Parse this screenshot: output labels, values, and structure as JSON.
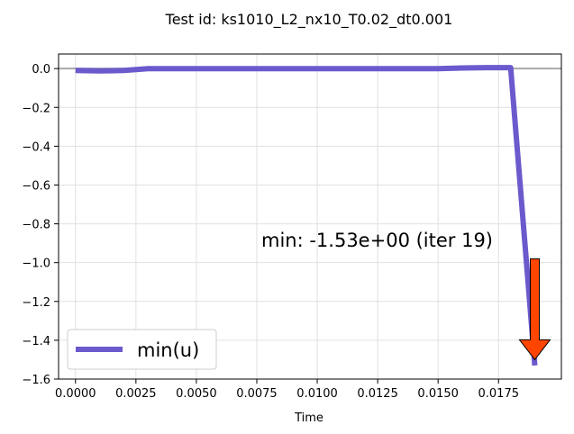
{
  "chart_data": {
    "type": "line",
    "title": "Test id:  ks1010_L2_nx10_T0.02_dt0.001",
    "xlabel": "Time",
    "ylabel": "",
    "xlim": [
      -0.0007,
      0.0201
    ],
    "ylim": [
      -1.6,
      0.075
    ],
    "xticks": [
      0.0,
      0.0025,
      0.005,
      0.0075,
      0.01,
      0.0125,
      0.015,
      0.0175
    ],
    "xtick_labels": [
      "0.0000",
      "0.0025",
      "0.0050",
      "0.0075",
      "0.0100",
      "0.0125",
      "0.0150",
      "0.0175"
    ],
    "yticks": [
      0.0,
      -0.2,
      -0.4,
      -0.6,
      -0.8,
      -1.0,
      -1.2,
      -1.4,
      -1.6
    ],
    "ytick_labels": [
      "0.0",
      "−0.2",
      "−0.4",
      "−0.6",
      "−0.8",
      "−1.0",
      "−1.2",
      "−1.4",
      "−1.6"
    ],
    "grid": true,
    "reference_line_y": 0.0,
    "series": [
      {
        "name": "min(u)",
        "color": "#6a5acd",
        "x": [
          0.0,
          0.001,
          0.002,
          0.003,
          0.004,
          0.005,
          0.006,
          0.007,
          0.008,
          0.009,
          0.01,
          0.011,
          0.012,
          0.013,
          0.014,
          0.015,
          0.016,
          0.017,
          0.018,
          0.019
        ],
        "y": [
          -0.01,
          -0.012,
          -0.01,
          0.0,
          0.0,
          0.0,
          0.0,
          0.0,
          0.0,
          0.0,
          0.0,
          0.0,
          0.0,
          0.0,
          0.0,
          0.0,
          0.003,
          0.005,
          0.005,
          -1.53
        ]
      }
    ],
    "annotation": {
      "text": "min: -1.53e+00 (iter 19)",
      "arrow_color": "#ff4500",
      "arrow_from": [
        0.019,
        -0.98
      ],
      "arrow_to": [
        0.019,
        -1.5
      ]
    },
    "legend": {
      "position": "lower-left",
      "entries": [
        "min(u)"
      ]
    }
  }
}
